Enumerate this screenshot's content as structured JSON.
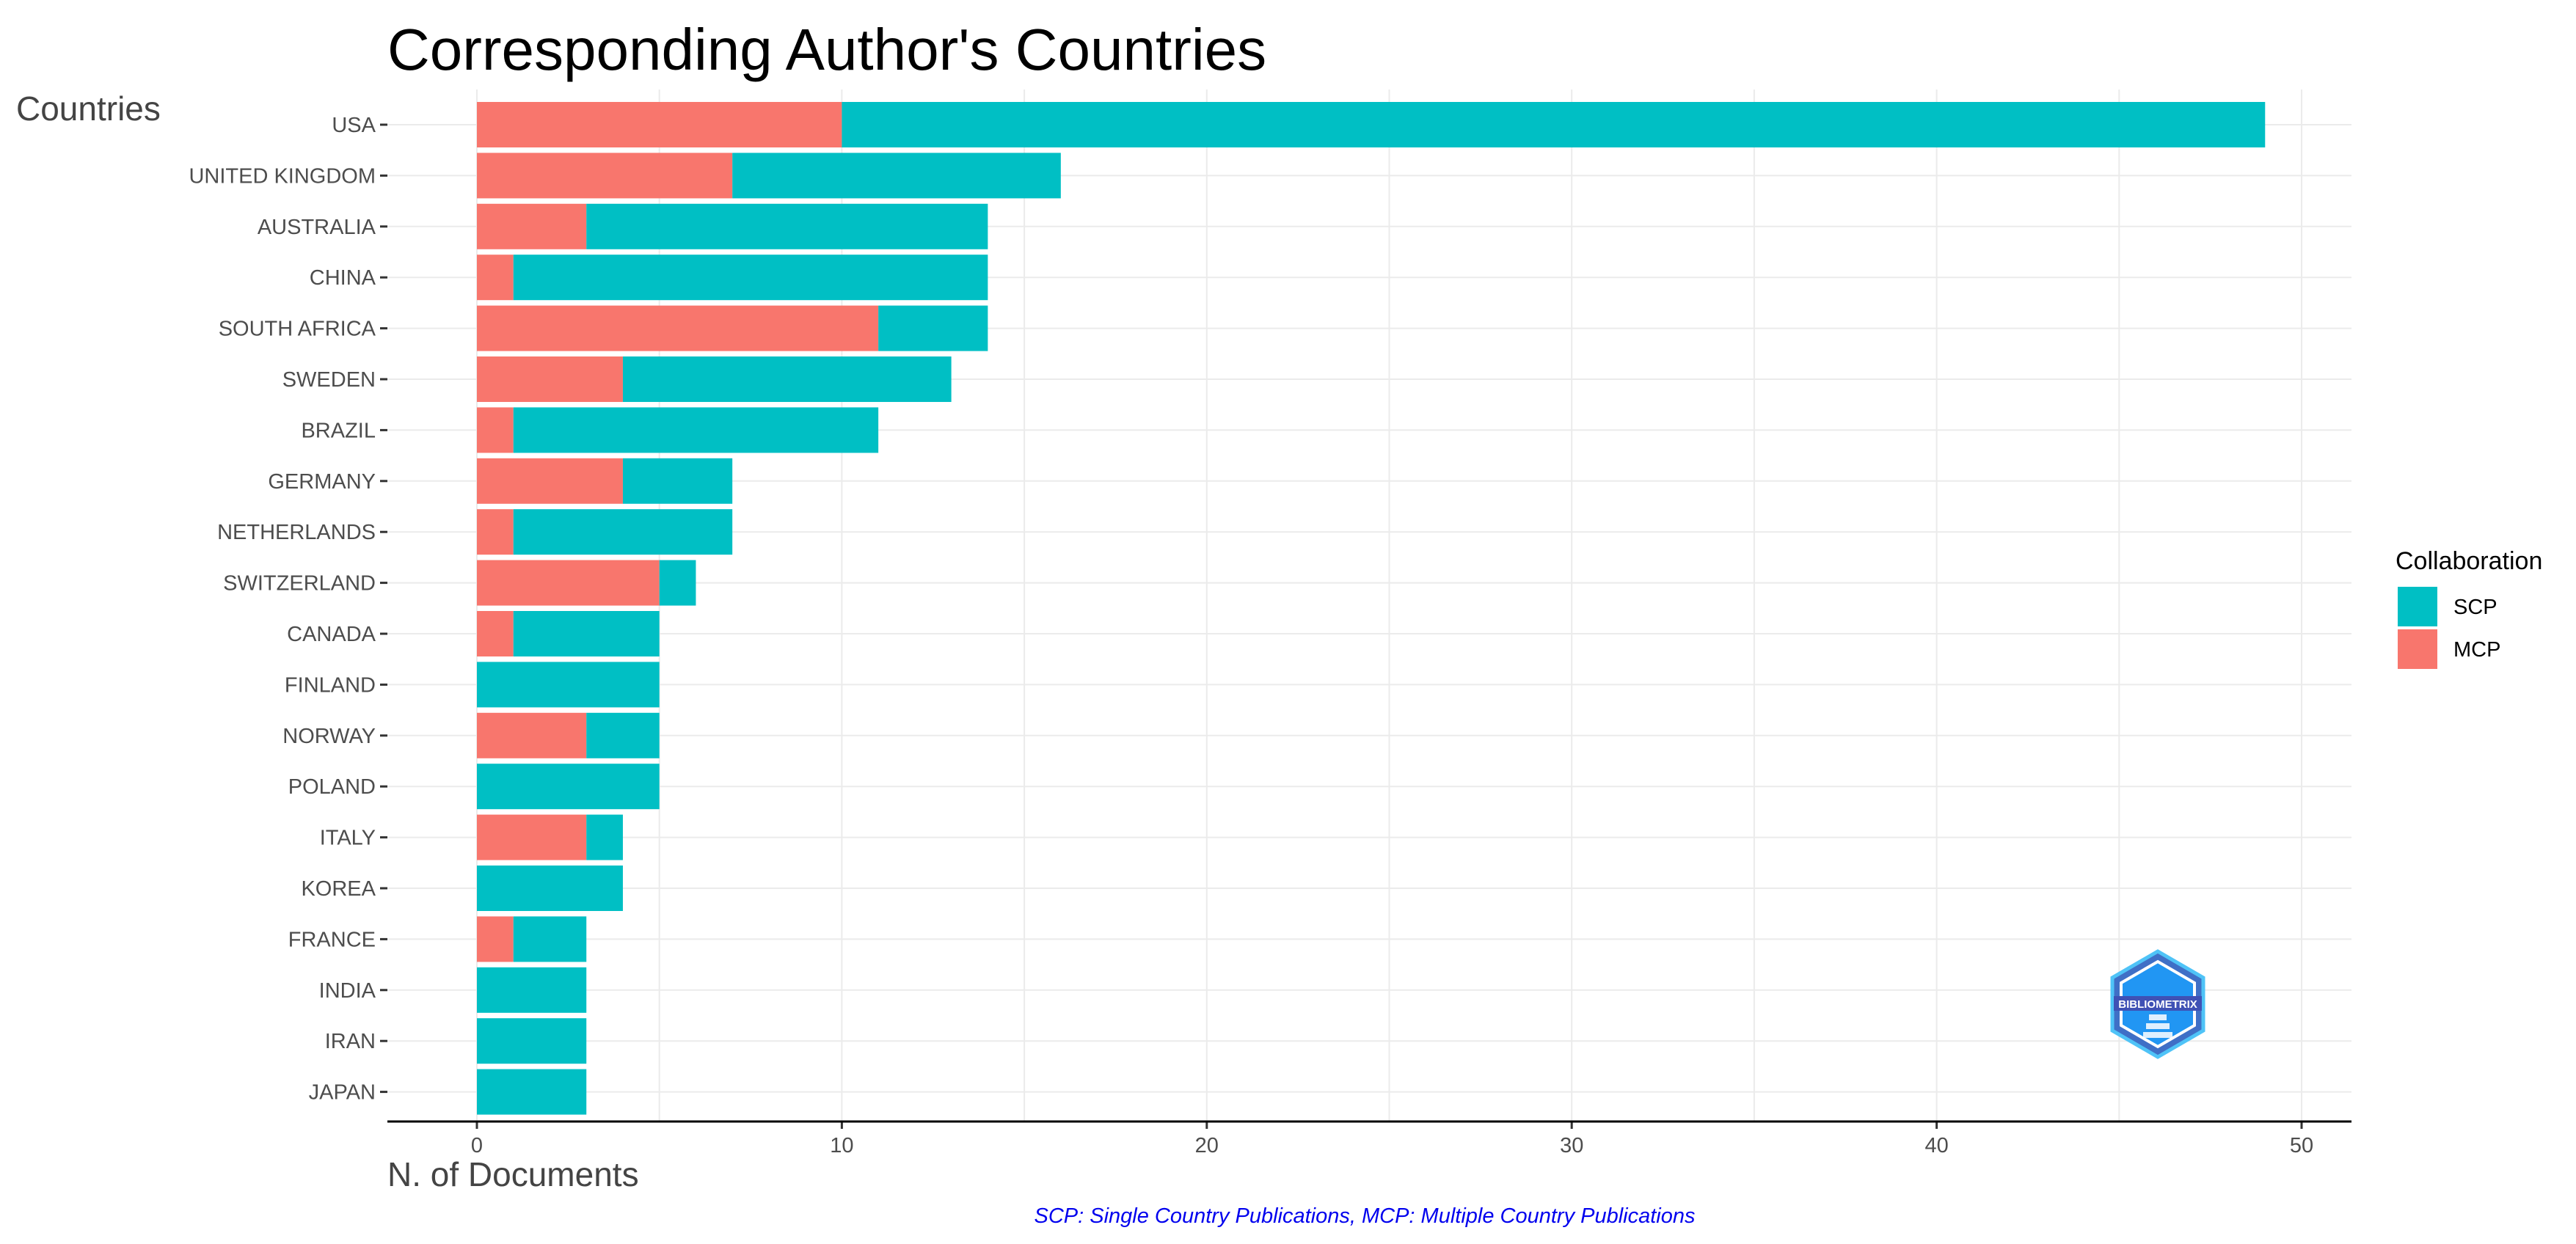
{
  "chart_data": {
    "type": "bar",
    "orientation": "horizontal",
    "stacked": true,
    "title": "Corresponding Author's Countries",
    "ylabel": "Countries",
    "xlabel": "N. of Documents",
    "categories": [
      "USA",
      "UNITED KINGDOM",
      "AUSTRALIA",
      "CHINA",
      "SOUTH AFRICA",
      "SWEDEN",
      "BRAZIL",
      "GERMANY",
      "NETHERLANDS",
      "SWITZERLAND",
      "CANADA",
      "FINLAND",
      "NORWAY",
      "POLAND",
      "ITALY",
      "KOREA",
      "FRANCE",
      "INDIA",
      "IRAN",
      "JAPAN"
    ],
    "series": [
      {
        "name": "MCP",
        "color": "#F8766D",
        "values": [
          10,
          7,
          3,
          1,
          11,
          4,
          1,
          4,
          1,
          5,
          1,
          0,
          3,
          0,
          3,
          0,
          1,
          0,
          0,
          0
        ]
      },
      {
        "name": "SCP",
        "color": "#00BFC4",
        "values": [
          39,
          9,
          11,
          13,
          3,
          9,
          10,
          3,
          6,
          1,
          4,
          5,
          2,
          5,
          1,
          4,
          2,
          3,
          3,
          3
        ]
      }
    ],
    "xlim": [
      0,
      50
    ],
    "xticks": [
      0,
      10,
      20,
      30,
      40,
      50
    ],
    "grid": true,
    "legend": {
      "title": "Collaboration",
      "placement": "right",
      "entries": [
        {
          "label": "SCP",
          "color": "#00BFC4"
        },
        {
          "label": "MCP",
          "color": "#F8766D"
        }
      ]
    },
    "caption": "SCP: Single Country Publications, MCP: Multiple Country Publications",
    "logo_text": "BIBLIOMETRIX"
  }
}
